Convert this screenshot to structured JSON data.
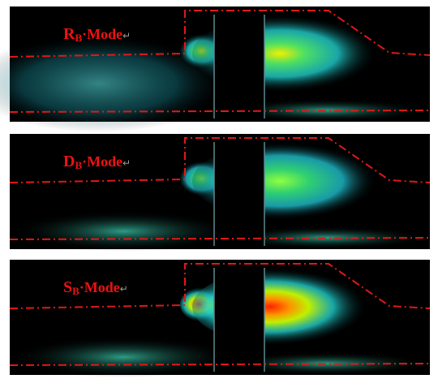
{
  "panels": [
    {
      "letter": "R",
      "subscript": "B",
      "suffix": "·Mode",
      "mark": "↵"
    },
    {
      "letter": "D",
      "subscript": "B",
      "suffix": "·Mode",
      "mark": "↵"
    },
    {
      "letter": "S",
      "subscript": "B",
      "suffix": "·Mode",
      "mark": "↵"
    }
  ]
}
